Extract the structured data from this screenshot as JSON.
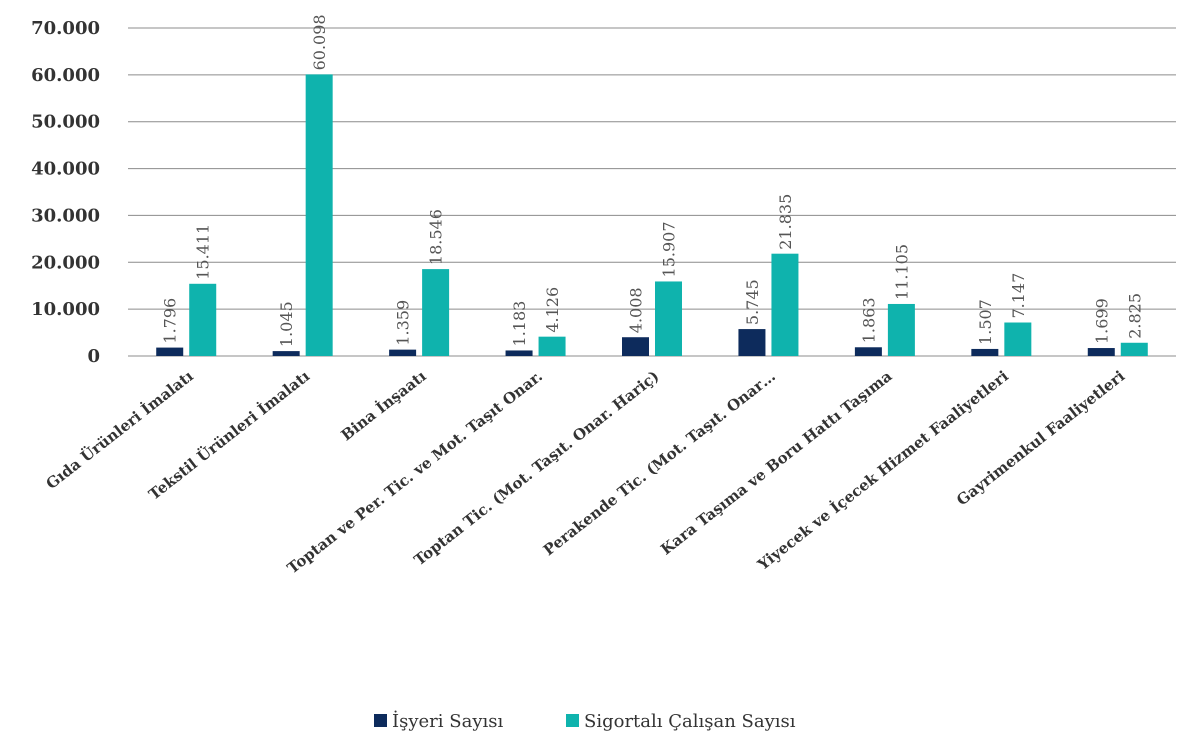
{
  "chart_data": {
    "type": "bar",
    "title": "",
    "xlabel": "",
    "ylabel": "",
    "ylim": [
      0,
      70000
    ],
    "yticks": [
      0,
      10000,
      20000,
      30000,
      40000,
      50000,
      60000,
      70000
    ],
    "ytick_labels": [
      "0",
      "10.000",
      "20.000",
      "30.000",
      "40.000",
      "50.000",
      "60.000",
      "70.000"
    ],
    "grid": true,
    "legend_position": "bottom",
    "categories": [
      "Gıda Ürünleri İmalatı",
      "Tekstil Ürünleri İmalatı",
      "Bina İnşaatı",
      "Toptan ve Per. Tic. ve Mot. Taşıt Onar.",
      "Toptan Tic. (Mot. Taşıt. Onar. Hariç)",
      "Perakende Tic. (Mot. Taşıt. Onar…",
      "Kara Taşıma ve Boru Hattı Taşıma",
      "Yiyecek ve İçecek Hizmet Faaliyetleri",
      "Gayrimenkul Faaliyetleri"
    ],
    "series": [
      {
        "name": "İşyeri Sayısı",
        "color": "#0d2b5c",
        "values": [
          1796,
          1045,
          1359,
          1183,
          4008,
          5745,
          1863,
          1507,
          1699
        ],
        "labels": [
          "1.796",
          "1.045",
          "1.359",
          "1.183",
          "4.008",
          "5.745",
          "1.863",
          "1.507",
          "1.699"
        ]
      },
      {
        "name": "Sigortalı Çalışan Sayısı",
        "color": "#0fb3ad",
        "values": [
          15411,
          60098,
          18546,
          4126,
          15907,
          21835,
          11105,
          7147,
          2825
        ],
        "labels": [
          "15.411",
          "60.098",
          "18.546",
          "4.126",
          "15.907",
          "21.835",
          "11.105",
          "7.147",
          "2.825"
        ]
      }
    ]
  }
}
